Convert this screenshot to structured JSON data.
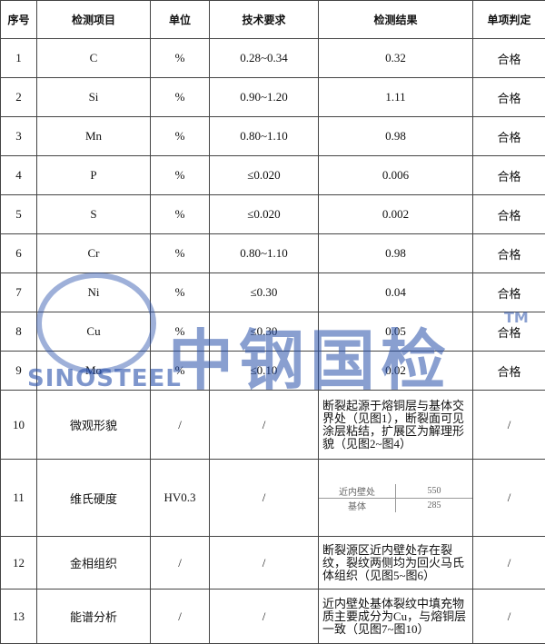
{
  "table": {
    "header": [
      "序号",
      "检测项目",
      "单位",
      "技术要求",
      "检测结果",
      "单项判定"
    ],
    "rows": [
      [
        "1",
        "C",
        "%",
        "0.28~0.34",
        "0.32",
        "合格"
      ],
      [
        "2",
        "Si",
        "%",
        "0.90~1.20",
        "1.11",
        "合格"
      ],
      [
        "3",
        "Mn",
        "%",
        "0.80~1.10",
        "0.98",
        "合格"
      ],
      [
        "4",
        "P",
        "%",
        "≤0.020",
        "0.006",
        "合格"
      ],
      [
        "5",
        "S",
        "%",
        "≤0.020",
        "0.002",
        "合格"
      ],
      [
        "6",
        "Cr",
        "%",
        "0.80~1.10",
        "0.98",
        "合格"
      ],
      [
        "7",
        "Ni",
        "%",
        "≤0.30",
        "0.04",
        "合格"
      ],
      [
        "8",
        "Cu",
        "%",
        "≤0.30",
        "0.05",
        "合格"
      ],
      [
        "9",
        "Mo",
        "%",
        "≤0.10",
        "0.02",
        "合格"
      ],
      [
        "10",
        "微观形貌",
        "/",
        "/",
        "断裂起源于熔铜层与基体交界处（见图1），断裂面可见涂层粘结，扩展区为解理形貌（见图2~图4）",
        "/"
      ],
      [
        "11",
        "维氏硬度",
        "HV0.3",
        "/",
        [
          [
            "近内壁处",
            "550"
          ],
          [
            "基体",
            "285"
          ]
        ],
        "/"
      ],
      [
        "12",
        "金相组织",
        "/",
        "/",
        "断裂源区近内壁处存在裂纹，裂纹两侧均为回火马氏体组织（见图5~图6）",
        "/"
      ],
      [
        "13",
        "能谱分析",
        "/",
        "/",
        "近内壁处基体裂纹中填充物质主要成分为Cu，与熔铜层一致（见图7~图10）",
        "/"
      ]
    ]
  },
  "watermark": {
    "name": "中钢国检",
    "logo": "SINOSTEEL",
    "mark": "TM"
  }
}
